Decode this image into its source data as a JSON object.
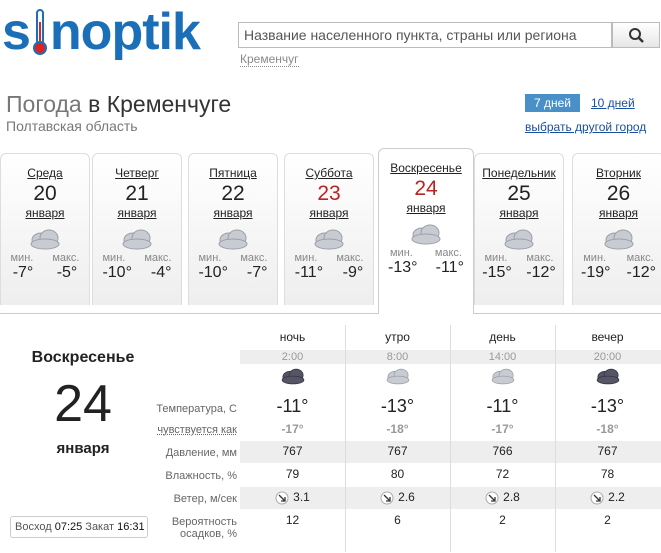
{
  "header": {
    "logo": {
      "start": "s",
      "end": "noptik"
    },
    "search_placeholder": "Название населенного пункта, страны или региона",
    "search_hint": "Кременчуг"
  },
  "location": {
    "title_prefix": "Погода",
    "title_city": "в Кременчуге",
    "region": "Полтавская область"
  },
  "tabs": {
    "items": [
      {
        "label": "7 дней",
        "active": true
      },
      {
        "label": "10 дней",
        "active": false
      }
    ],
    "change_city": "выбрать другой город"
  },
  "days": [
    {
      "name": "Среда",
      "date": "20",
      "month": "января",
      "min_label": "мин.",
      "max_label": "макс.",
      "min": "-7°",
      "max": "-5°",
      "weekend": false,
      "active": false
    },
    {
      "name": "Четверг",
      "date": "21",
      "month": "января",
      "min_label": "мин.",
      "max_label": "макс.",
      "min": "-10°",
      "max": "-4°",
      "weekend": false,
      "active": false
    },
    {
      "name": "Пятница",
      "date": "22",
      "month": "января",
      "min_label": "мин.",
      "max_label": "макс.",
      "min": "-10°",
      "max": "-7°",
      "weekend": false,
      "active": false
    },
    {
      "name": "Суббота",
      "date": "23",
      "month": "января",
      "min_label": "мин.",
      "max_label": "макс.",
      "min": "-11°",
      "max": "-9°",
      "weekend": true,
      "active": false
    },
    {
      "name": "Воскресенье",
      "date": "24",
      "month": "января",
      "min_label": "мин.",
      "max_label": "макс.",
      "min": "-13°",
      "max": "-11°",
      "weekend": true,
      "active": true
    },
    {
      "name": "Понедельник",
      "date": "25",
      "month": "января",
      "min_label": "мин.",
      "max_label": "макс.",
      "min": "-15°",
      "max": "-12°",
      "weekend": false,
      "active": false
    },
    {
      "name": "Вторник",
      "date": "26",
      "month": "января",
      "min_label": "мин.",
      "max_label": "макс.",
      "min": "-19°",
      "max": "-12°",
      "weekend": false,
      "active": false
    }
  ],
  "details": {
    "day_name": "Воскресенье",
    "date": "24",
    "month": "января",
    "sun": {
      "rise_label": "Восход",
      "rise": "07:25",
      "set_label": "Закат",
      "set": "16:31"
    },
    "periods": [
      {
        "name": "ночь",
        "time": "2:00"
      },
      {
        "name": "утро",
        "time": "8:00"
      },
      {
        "name": "день",
        "time": "14:00"
      },
      {
        "name": "вечер",
        "time": "20:00"
      }
    ],
    "rows": [
      {
        "label": "Температура, С",
        "values": [
          "-11°",
          "-13°",
          "-11°",
          "-13°"
        ]
      },
      {
        "label": "чувствуется как",
        "values": [
          "-17°",
          "-18°",
          "-17°",
          "-18°"
        ]
      },
      {
        "label": "Давление, мм",
        "values": [
          "767",
          "767",
          "766",
          "767"
        ]
      },
      {
        "label": "Влажность, %",
        "values": [
          "79",
          "80",
          "72",
          "78"
        ]
      },
      {
        "label": "Ветер, м/сек",
        "values": [
          "3.1",
          "2.6",
          "2.8",
          "2.2"
        ]
      },
      {
        "label": "Вероятность осадков, %",
        "values": [
          "12",
          "6",
          "2",
          "2"
        ]
      }
    ]
  }
}
